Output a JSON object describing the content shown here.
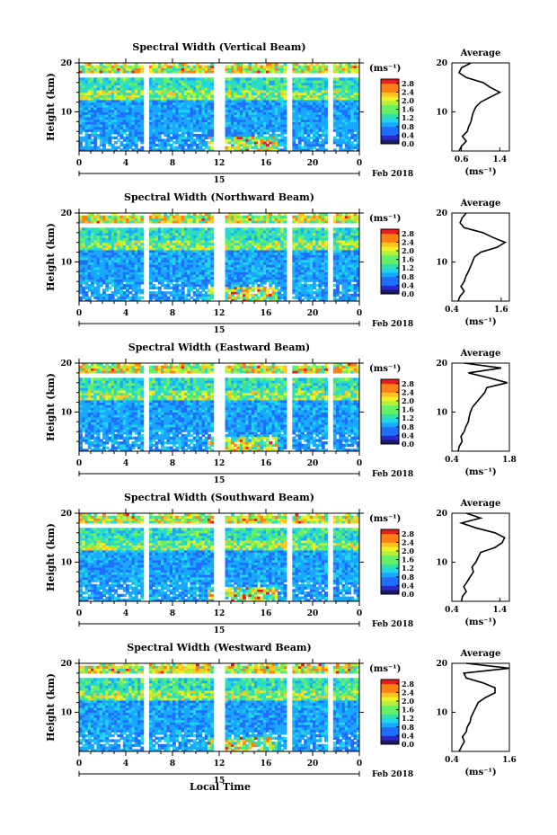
{
  "figure": {
    "date_label": "Feb 2018",
    "day_label": "15",
    "xlabel": "Local Time",
    "ylabel": "Height (km)",
    "unit_label": "(ms⁻¹)",
    "avg_xlabel": "(ms⁻¹)",
    "avg_title": "Average",
    "colorbar_ticks": [
      "0.0",
      "0.4",
      "0.8",
      "1.2",
      "1.6",
      "2.0",
      "2.4",
      "2.8"
    ],
    "colorbar_range": [
      0.0,
      3.0
    ],
    "colormap": [
      "#1a1a66",
      "#2b2bcc",
      "#1f6fff",
      "#19a8ff",
      "#22d6e6",
      "#33e0a8",
      "#66f066",
      "#b4f03c",
      "#f0f028",
      "#ffc21e",
      "#ff8014",
      "#e61e1e"
    ],
    "x_ticks": [
      "0",
      "4",
      "8",
      "12",
      "16",
      "20",
      "0"
    ],
    "y_ticks": [
      "20",
      "10"
    ],
    "data_gaps_hours": [
      [
        5.6,
        6.0
      ],
      [
        11.6,
        12.6
      ],
      [
        17.8,
        18.2
      ],
      [
        21.2,
        21.7
      ]
    ]
  },
  "chart_data": [
    {
      "type": "heatmap",
      "title": "Spectral Width (Vertical Beam)",
      "xlim": [
        0,
        24
      ],
      "ylim": [
        2,
        20
      ],
      "avg": {
        "title": "Average",
        "xticks": [
          "0.6",
          "1.4"
        ],
        "xlim": [
          0.4,
          1.6
        ],
        "heights": [
          2,
          3,
          4,
          5,
          6,
          7,
          8,
          9,
          10,
          11,
          12,
          13,
          14,
          15,
          16,
          17,
          18,
          19,
          20
        ],
        "values": [
          0.55,
          0.6,
          0.7,
          0.62,
          0.72,
          0.75,
          0.8,
          0.82,
          0.85,
          0.9,
          1.0,
          1.2,
          1.4,
          1.2,
          1.05,
          0.7,
          0.55,
          0.6,
          0.8
        ]
      }
    },
    {
      "type": "heatmap",
      "title": "Spectral Width (Northward Beam)",
      "xlim": [
        0,
        24
      ],
      "ylim": [
        2,
        20
      ],
      "avg": {
        "title": "Average",
        "xticks": [
          "0.4",
          "1.6"
        ],
        "xlim": [
          0.4,
          1.8
        ],
        "heights": [
          2,
          3,
          4,
          5,
          6,
          7,
          8,
          9,
          10,
          11,
          12,
          13,
          14,
          15,
          16,
          17,
          18,
          19,
          20
        ],
        "values": [
          0.55,
          0.6,
          0.7,
          0.62,
          0.7,
          0.74,
          0.8,
          0.85,
          0.9,
          0.95,
          1.1,
          1.5,
          1.7,
          1.4,
          1.15,
          0.7,
          0.6,
          0.65,
          0.75
        ]
      }
    },
    {
      "type": "heatmap",
      "title": "Spectral Width (Eastward Beam)",
      "xlim": [
        0,
        24
      ],
      "ylim": [
        2,
        20
      ],
      "avg": {
        "title": "Average",
        "xticks": [
          "0.4",
          "1.8"
        ],
        "xlim": [
          0.4,
          1.8
        ],
        "heights": [
          2,
          3,
          4,
          5,
          6,
          7,
          8,
          9,
          10,
          11,
          12,
          13,
          14,
          15,
          16,
          17,
          18,
          19,
          20
        ],
        "values": [
          0.55,
          0.58,
          0.65,
          0.62,
          0.7,
          0.74,
          0.8,
          0.82,
          0.85,
          0.9,
          1.0,
          1.1,
          1.2,
          1.25,
          1.75,
          1.3,
          0.8,
          1.6,
          0.7
        ]
      }
    },
    {
      "type": "heatmap",
      "title": "Spectral Width (Southward Beam)",
      "xlim": [
        0,
        24
      ],
      "ylim": [
        2,
        20
      ],
      "avg": {
        "title": "Average",
        "xticks": [
          "0.4",
          "1.4"
        ],
        "xlim": [
          0.4,
          1.6
        ],
        "heights": [
          2,
          3,
          4,
          5,
          6,
          7,
          8,
          9,
          10,
          11,
          12,
          13,
          14,
          15,
          16,
          17,
          18,
          19,
          20
        ],
        "values": [
          0.6,
          0.62,
          0.7,
          0.65,
          0.72,
          0.78,
          0.85,
          0.82,
          0.9,
          0.95,
          1.0,
          1.3,
          1.45,
          1.5,
          1.3,
          0.9,
          0.6,
          1.0,
          0.7
        ]
      }
    },
    {
      "type": "heatmap",
      "title": "Spectral Width (Westward Beam)",
      "xlim": [
        0,
        24
      ],
      "ylim": [
        2,
        20
      ],
      "avg": {
        "title": "Average",
        "xticks": [
          "0.4",
          "1.6"
        ],
        "xlim": [
          0.4,
          1.6
        ],
        "heights": [
          2,
          3,
          4,
          5,
          6,
          7,
          8,
          9,
          10,
          11,
          12,
          13,
          14,
          15,
          16,
          17,
          18,
          19,
          20
        ],
        "values": [
          0.55,
          0.6,
          0.66,
          0.62,
          0.7,
          0.72,
          0.78,
          0.8,
          0.85,
          0.9,
          0.95,
          1.1,
          1.3,
          1.3,
          1.05,
          0.7,
          0.65,
          1.6,
          0.7
        ]
      }
    }
  ]
}
